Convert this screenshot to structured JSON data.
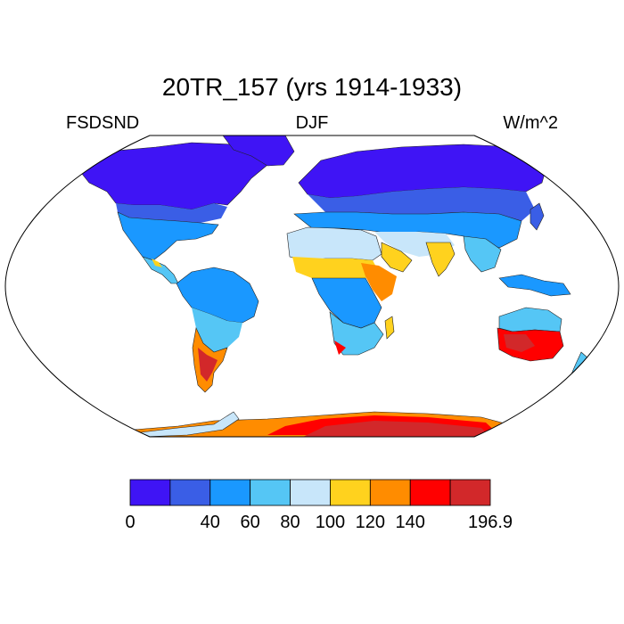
{
  "title": "20TR_157 (yrs 1914-1933)",
  "left_string": "FSDSND",
  "center_string": "DJF",
  "right_string": "W/m^2",
  "colorbar": {
    "colors": [
      "#3f14f5",
      "#3a5ee6",
      "#1a98ff",
      "#55c6f5",
      "#c8e6fa",
      "#ffd21e",
      "#ff8c00",
      "#ff0000",
      "#d2282a"
    ],
    "labels": [
      "0",
      "40",
      "60",
      "80",
      "100",
      "120",
      "140",
      "196.9"
    ]
  }
}
